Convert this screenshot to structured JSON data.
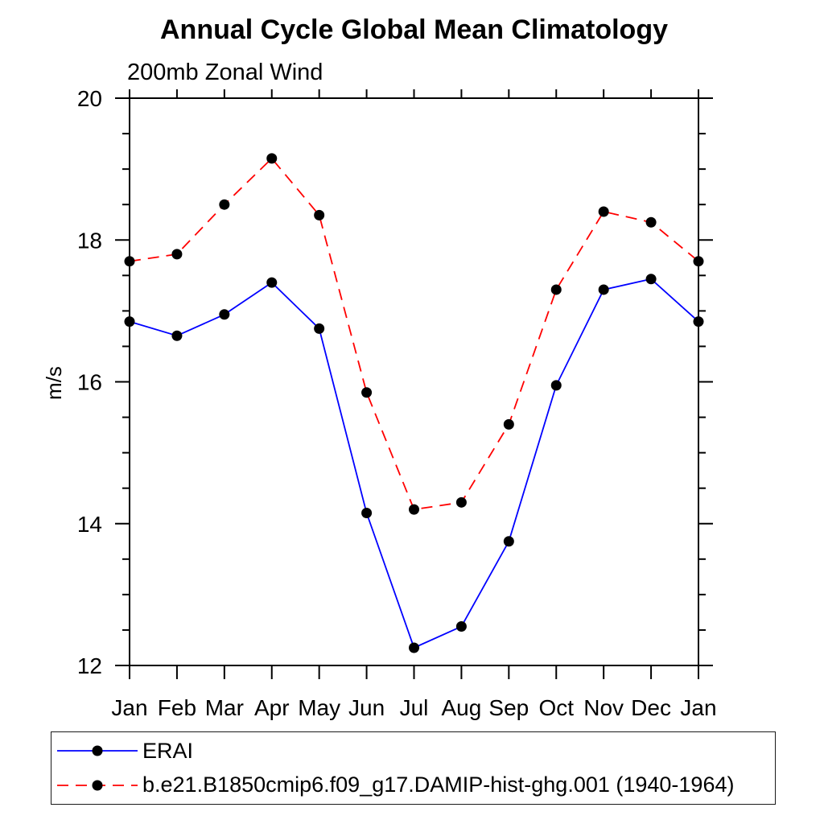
{
  "chart_data": {
    "type": "line",
    "title": "Annual Cycle Global Mean Climatology",
    "subtitle": "200mb Zonal Wind",
    "ylabel": "m/s",
    "xlabel": "",
    "categories": [
      "Jan",
      "Feb",
      "Mar",
      "Apr",
      "May",
      "Jun",
      "Jul",
      "Aug",
      "Sep",
      "Oct",
      "Nov",
      "Dec",
      "Jan"
    ],
    "ylim": [
      12,
      20
    ],
    "ytick_major": [
      12,
      14,
      16,
      18,
      20
    ],
    "ytick_minor_step": 0.5,
    "grid": false,
    "legend_position": "bottom-box",
    "series": [
      {
        "name": "ERAI",
        "color": "#0000ff",
        "style": "solid",
        "marker": "filled-circle",
        "marker_color": "#000000",
        "values": [
          16.85,
          16.65,
          16.95,
          17.4,
          16.75,
          14.15,
          12.25,
          12.55,
          13.75,
          15.95,
          17.3,
          17.45,
          16.85
        ]
      },
      {
        "name": "b.e21.B1850cmip6.f09_g17.DAMIP-hist-ghg.001 (1940-1964)",
        "color": "#ff0000",
        "style": "dashed",
        "marker": "filled-circle",
        "marker_color": "#000000",
        "values": [
          17.7,
          17.8,
          18.5,
          19.15,
          18.35,
          15.85,
          14.2,
          14.3,
          15.4,
          17.3,
          18.4,
          18.25,
          17.7
        ]
      }
    ]
  },
  "colors": {
    "background": "#ffffff",
    "axis": "#000000",
    "text": "#000000",
    "erai_line": "#0000ff",
    "model_line": "#ff0000",
    "marker": "#000000",
    "legend_border": "#1a1a1a"
  }
}
